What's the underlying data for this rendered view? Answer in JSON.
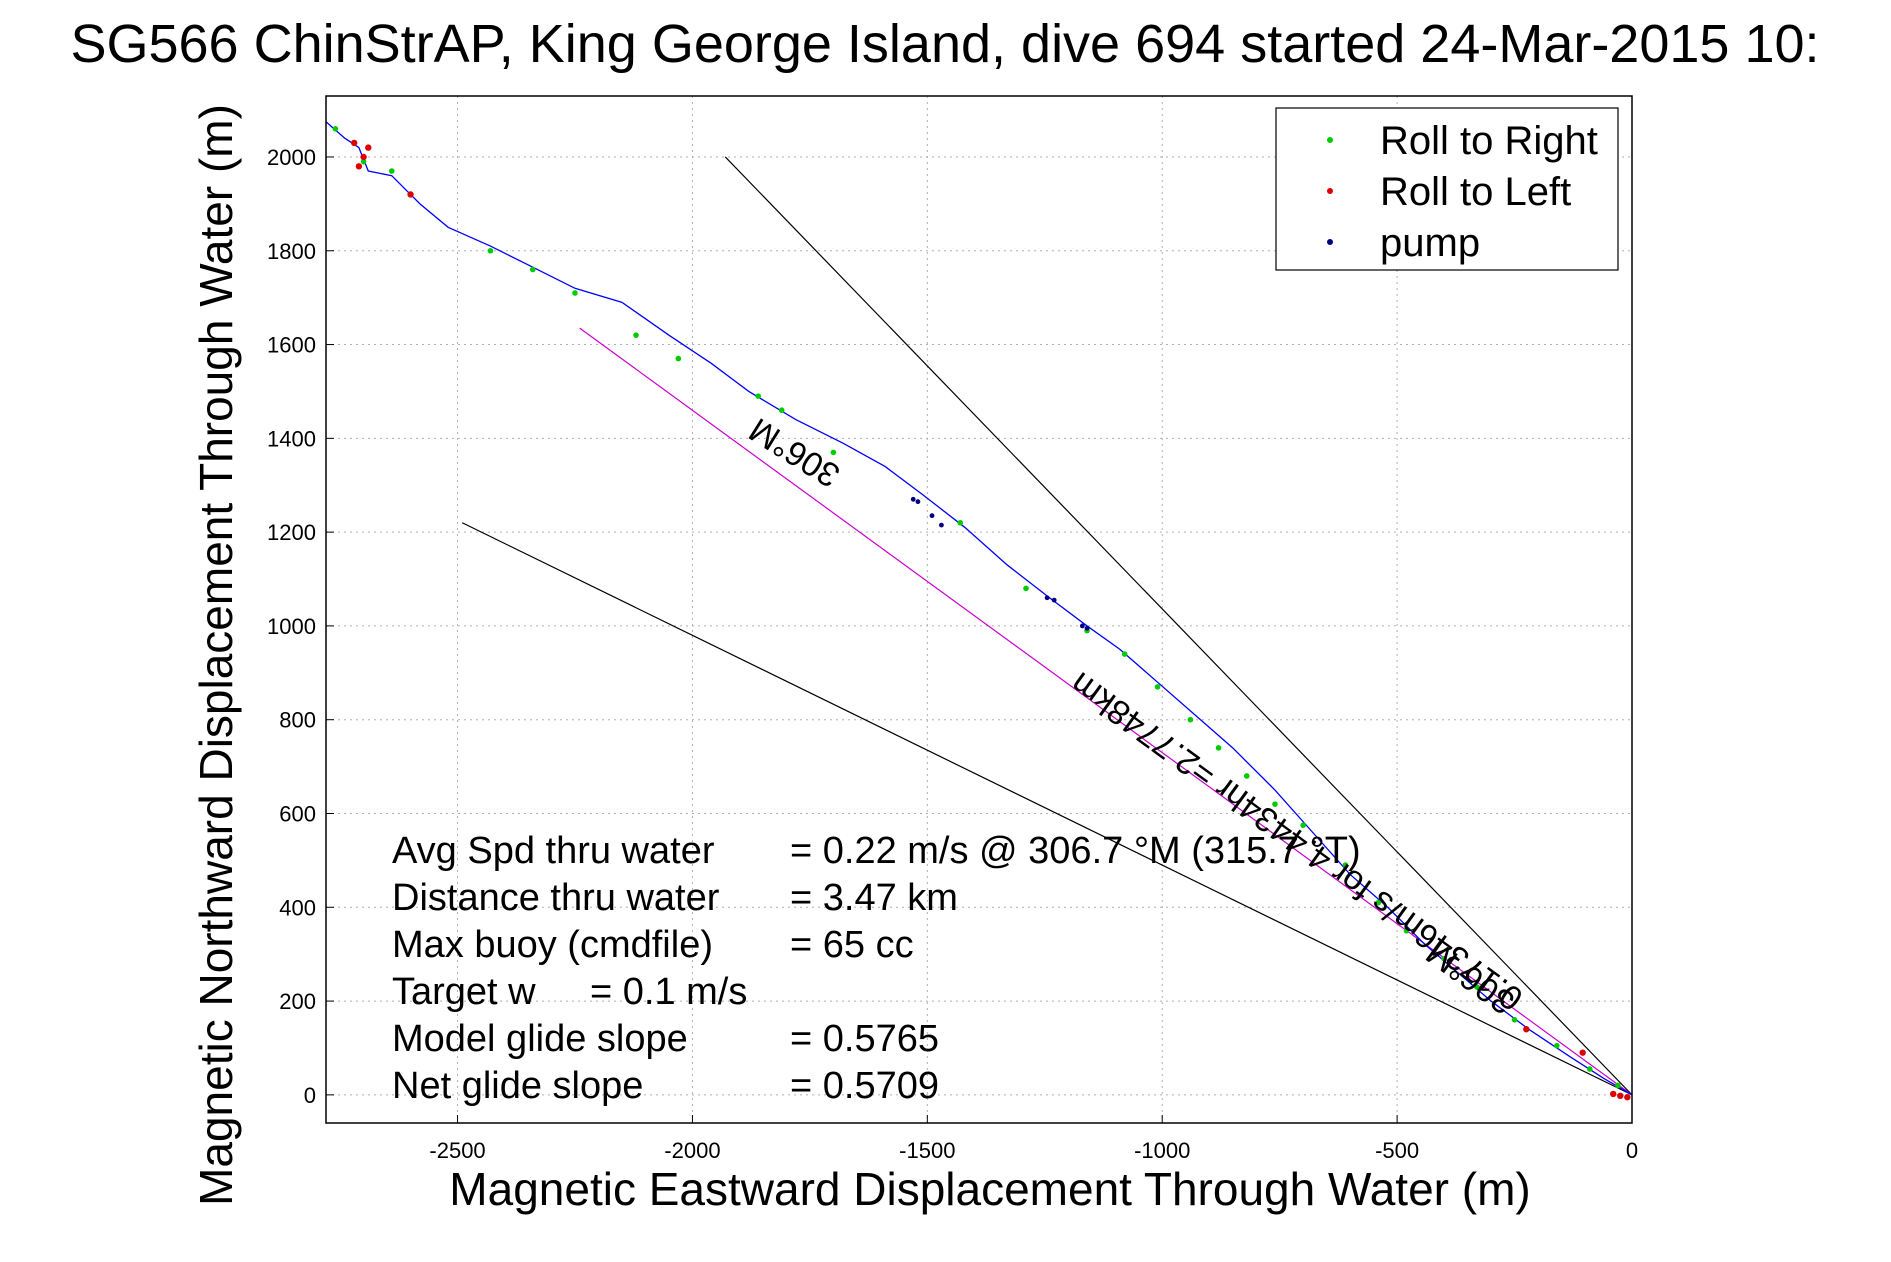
{
  "chart_data": {
    "type": "line",
    "title": "SG566 ChinStrAP, King George Island, dive 694 started 24-Mar-2015 10:",
    "xlabel": "Magnetic Eastward Displacement Through Water (m)",
    "ylabel": "Magnetic Northward Displacement Through Water (m)",
    "xlim": [
      -2780,
      0
    ],
    "ylim": [
      -60,
      2130
    ],
    "xticks": [
      -2500,
      -2000,
      -1500,
      -1000,
      -500,
      0
    ],
    "yticks": [
      0,
      200,
      400,
      600,
      800,
      1000,
      1200,
      1400,
      1600,
      1800,
      2000
    ],
    "grid": true,
    "legend_position": "top-right",
    "legend": [
      {
        "label": "Roll to Right",
        "color": "#00cc00"
      },
      {
        "label": "Roll to Left",
        "color": "#dd0000"
      },
      {
        "label": "pump",
        "color": "#000080"
      }
    ],
    "track": {
      "color": "#0000ff",
      "x": [
        0,
        -60,
        -130,
        -220,
        -300,
        -370,
        -440,
        -520,
        -600,
        -680,
        -760,
        -850,
        -930,
        -1010,
        -1090,
        -1160,
        -1240,
        -1330,
        -1420,
        -1510,
        -1590,
        -1680,
        -1780,
        -1880,
        -1960,
        -2050,
        -2150,
        -2250,
        -2350,
        -2430,
        -2520,
        -2580,
        -2610,
        -2640,
        -2690,
        -2710,
        -2740,
        -2780
      ],
      "y": [
        0,
        35,
        80,
        140,
        200,
        260,
        320,
        400,
        470,
        560,
        650,
        740,
        810,
        880,
        950,
        1000,
        1060,
        1130,
        1210,
        1280,
        1340,
        1390,
        1440,
        1500,
        1560,
        1620,
        1690,
        1720,
        1770,
        1810,
        1850,
        1900,
        1930,
        1960,
        1970,
        2020,
        2040,
        2075
      ]
    },
    "roll_right": {
      "x": [
        -30,
        -90,
        -160,
        -250,
        -330,
        -400,
        -480,
        -540,
        -610,
        -700,
        -760,
        -820,
        -880,
        -940,
        -1010,
        -1080,
        -1160,
        -1290,
        -1430,
        -1700,
        -1810,
        -1860,
        -2030,
        -2120,
        -2250,
        -2340,
        -2430,
        -2640,
        -2700,
        -2760
      ],
      "y": [
        20,
        55,
        105,
        160,
        230,
        290,
        350,
        410,
        490,
        575,
        620,
        680,
        740,
        800,
        870,
        940,
        990,
        1080,
        1220,
        1370,
        1460,
        1490,
        1570,
        1620,
        1710,
        1760,
        1800,
        1970,
        1990,
        2060
      ]
    },
    "roll_left": {
      "x": [
        -10,
        -25,
        -40,
        -105,
        -225,
        -2600,
        -2690,
        -2700,
        -2710,
        -2720
      ],
      "y": [
        -5,
        -2,
        2,
        90,
        140,
        1920,
        2020,
        2000,
        1980,
        2030
      ]
    },
    "pump": {
      "x": [
        -1245,
        -1230,
        -1170,
        -1160,
        -1530,
        -1520,
        -1490,
        -1470
      ],
      "y": [
        1060,
        1055,
        1000,
        995,
        1270,
        1265,
        1235,
        1215
      ]
    },
    "reference_lines": [
      {
        "name": "upper-bound",
        "color": "#000000",
        "x": [
          0,
          -1930
        ],
        "y": [
          0,
          2000
        ]
      },
      {
        "name": "lower-bound",
        "color": "#000000",
        "x": [
          0,
          -2490
        ],
        "y": [
          0,
          1220
        ]
      },
      {
        "name": "heading-line",
        "color": "#cc00cc",
        "x": [
          0,
          -2240
        ],
        "y": [
          0,
          1635
        ]
      }
    ],
    "annotations": [
      {
        "text": "306°M",
        "x": -1770,
        "y": 1390,
        "angle": 32
      },
      {
        "text": "0.17346m/s for 4.4434hr =2.7748km",
        "x": -700,
        "y": 560,
        "angle": 36
      },
      {
        "text": "306°M",
        "x": -330,
        "y": 270,
        "angle": 36
      }
    ],
    "stats": [
      {
        "label": "Avg Spd thru water",
        "value": "=  0.22 m/s @ 306.7 °M (315.7 °T)"
      },
      {
        "label": "Distance thru water",
        "value": "=  3.47 km"
      },
      {
        "label": "Max buoy (cmdfile)",
        "value": "= 65 cc"
      },
      {
        "label": "Target w",
        "value": "= 0.1 m/s"
      },
      {
        "label": "Model glide slope",
        "value": "= 0.5765"
      },
      {
        "label": "Net glide slope",
        "value": "= 0.5709"
      }
    ]
  }
}
